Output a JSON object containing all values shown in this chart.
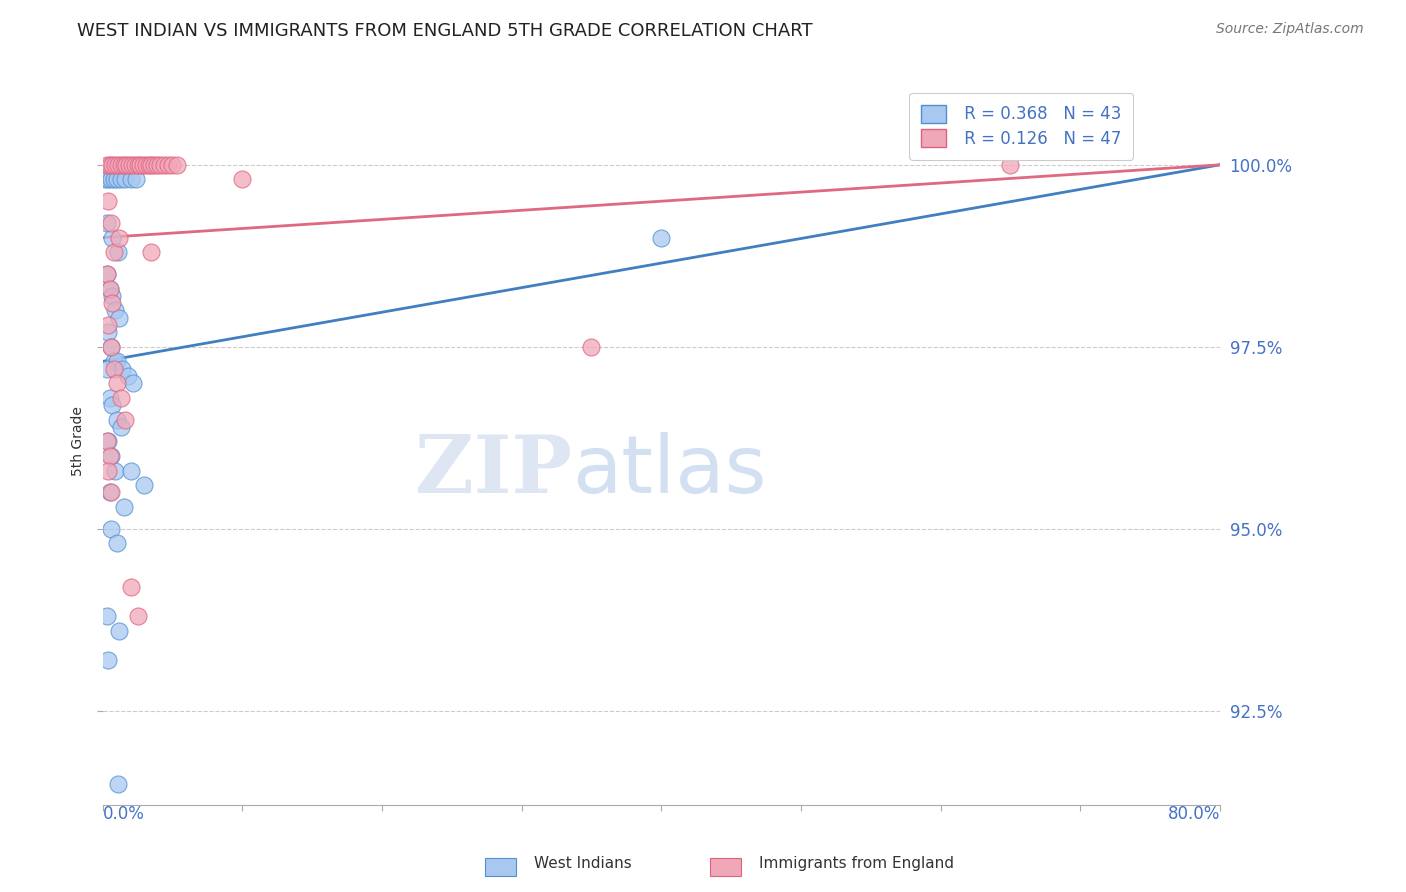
{
  "title": "WEST INDIAN VS IMMIGRANTS FROM ENGLAND 5TH GRADE CORRELATION CHART",
  "source": "Source: ZipAtlas.com",
  "ylabel": "5th Grade",
  "ylabel_tick_vals": [
    100.0,
    97.5,
    95.0,
    92.5
  ],
  "xlim": [
    0.0,
    80.0
  ],
  "ylim": [
    91.2,
    101.2
  ],
  "legend_blue_R": "R = 0.368",
  "legend_blue_N": "N = 43",
  "legend_pink_R": "R = 0.126",
  "legend_pink_N": "N = 47",
  "blue_color": "#A8C8F0",
  "pink_color": "#F0A8B8",
  "blue_edge_color": "#5090D0",
  "pink_edge_color": "#E06080",
  "blue_line_color": "#4080C0",
  "pink_line_color": "#E06880",
  "watermark_zip": "ZIP",
  "watermark_atlas": "atlas",
  "blue_scatter": [
    [
      0.2,
      99.8
    ],
    [
      0.4,
      99.8
    ],
    [
      0.6,
      99.8
    ],
    [
      0.8,
      99.8
    ],
    [
      1.0,
      99.8
    ],
    [
      1.3,
      99.8
    ],
    [
      1.6,
      99.8
    ],
    [
      2.0,
      99.8
    ],
    [
      2.4,
      99.8
    ],
    [
      0.3,
      99.2
    ],
    [
      0.7,
      99.0
    ],
    [
      1.1,
      98.8
    ],
    [
      0.3,
      98.5
    ],
    [
      0.5,
      98.3
    ],
    [
      0.7,
      98.2
    ],
    [
      0.9,
      98.0
    ],
    [
      1.2,
      97.9
    ],
    [
      0.4,
      97.7
    ],
    [
      0.6,
      97.5
    ],
    [
      0.8,
      97.3
    ],
    [
      1.0,
      97.3
    ],
    [
      1.4,
      97.2
    ],
    [
      1.8,
      97.1
    ],
    [
      2.2,
      97.0
    ],
    [
      0.3,
      97.2
    ],
    [
      0.5,
      96.8
    ],
    [
      0.7,
      96.7
    ],
    [
      1.0,
      96.5
    ],
    [
      1.3,
      96.4
    ],
    [
      0.4,
      96.2
    ],
    [
      0.6,
      96.0
    ],
    [
      0.9,
      95.8
    ],
    [
      2.0,
      95.8
    ],
    [
      0.5,
      95.5
    ],
    [
      1.5,
      95.3
    ],
    [
      3.0,
      95.6
    ],
    [
      0.6,
      95.0
    ],
    [
      1.0,
      94.8
    ],
    [
      0.3,
      93.8
    ],
    [
      1.2,
      93.6
    ],
    [
      0.4,
      93.2
    ],
    [
      1.1,
      91.5
    ],
    [
      40.0,
      99.0
    ]
  ],
  "pink_scatter": [
    [
      0.3,
      100.0
    ],
    [
      0.5,
      100.0
    ],
    [
      0.7,
      100.0
    ],
    [
      0.9,
      100.0
    ],
    [
      1.1,
      100.0
    ],
    [
      1.3,
      100.0
    ],
    [
      1.5,
      100.0
    ],
    [
      1.7,
      100.0
    ],
    [
      1.9,
      100.0
    ],
    [
      2.1,
      100.0
    ],
    [
      2.3,
      100.0
    ],
    [
      2.5,
      100.0
    ],
    [
      2.7,
      100.0
    ],
    [
      2.9,
      100.0
    ],
    [
      3.1,
      100.0
    ],
    [
      3.3,
      100.0
    ],
    [
      3.5,
      100.0
    ],
    [
      3.7,
      100.0
    ],
    [
      3.9,
      100.0
    ],
    [
      4.1,
      100.0
    ],
    [
      4.4,
      100.0
    ],
    [
      4.7,
      100.0
    ],
    [
      5.0,
      100.0
    ],
    [
      5.3,
      100.0
    ],
    [
      0.4,
      99.5
    ],
    [
      0.6,
      99.2
    ],
    [
      0.8,
      98.8
    ],
    [
      0.3,
      98.5
    ],
    [
      0.5,
      98.3
    ],
    [
      0.7,
      98.1
    ],
    [
      0.4,
      97.8
    ],
    [
      0.6,
      97.5
    ],
    [
      0.8,
      97.2
    ],
    [
      1.0,
      97.0
    ],
    [
      1.3,
      96.8
    ],
    [
      1.6,
      96.5
    ],
    [
      0.3,
      96.2
    ],
    [
      0.5,
      96.0
    ],
    [
      1.2,
      99.0
    ],
    [
      3.5,
      98.8
    ],
    [
      0.4,
      95.8
    ],
    [
      0.6,
      95.5
    ],
    [
      2.0,
      94.2
    ],
    [
      2.5,
      93.8
    ],
    [
      35.0,
      97.5
    ],
    [
      65.0,
      100.0
    ],
    [
      10.0,
      99.8
    ]
  ],
  "blue_line_x": [
    0.0,
    80.0
  ],
  "blue_line_y": [
    97.3,
    100.0
  ],
  "pink_line_x": [
    0.0,
    80.0
  ],
  "pink_line_y": [
    99.0,
    100.0
  ]
}
